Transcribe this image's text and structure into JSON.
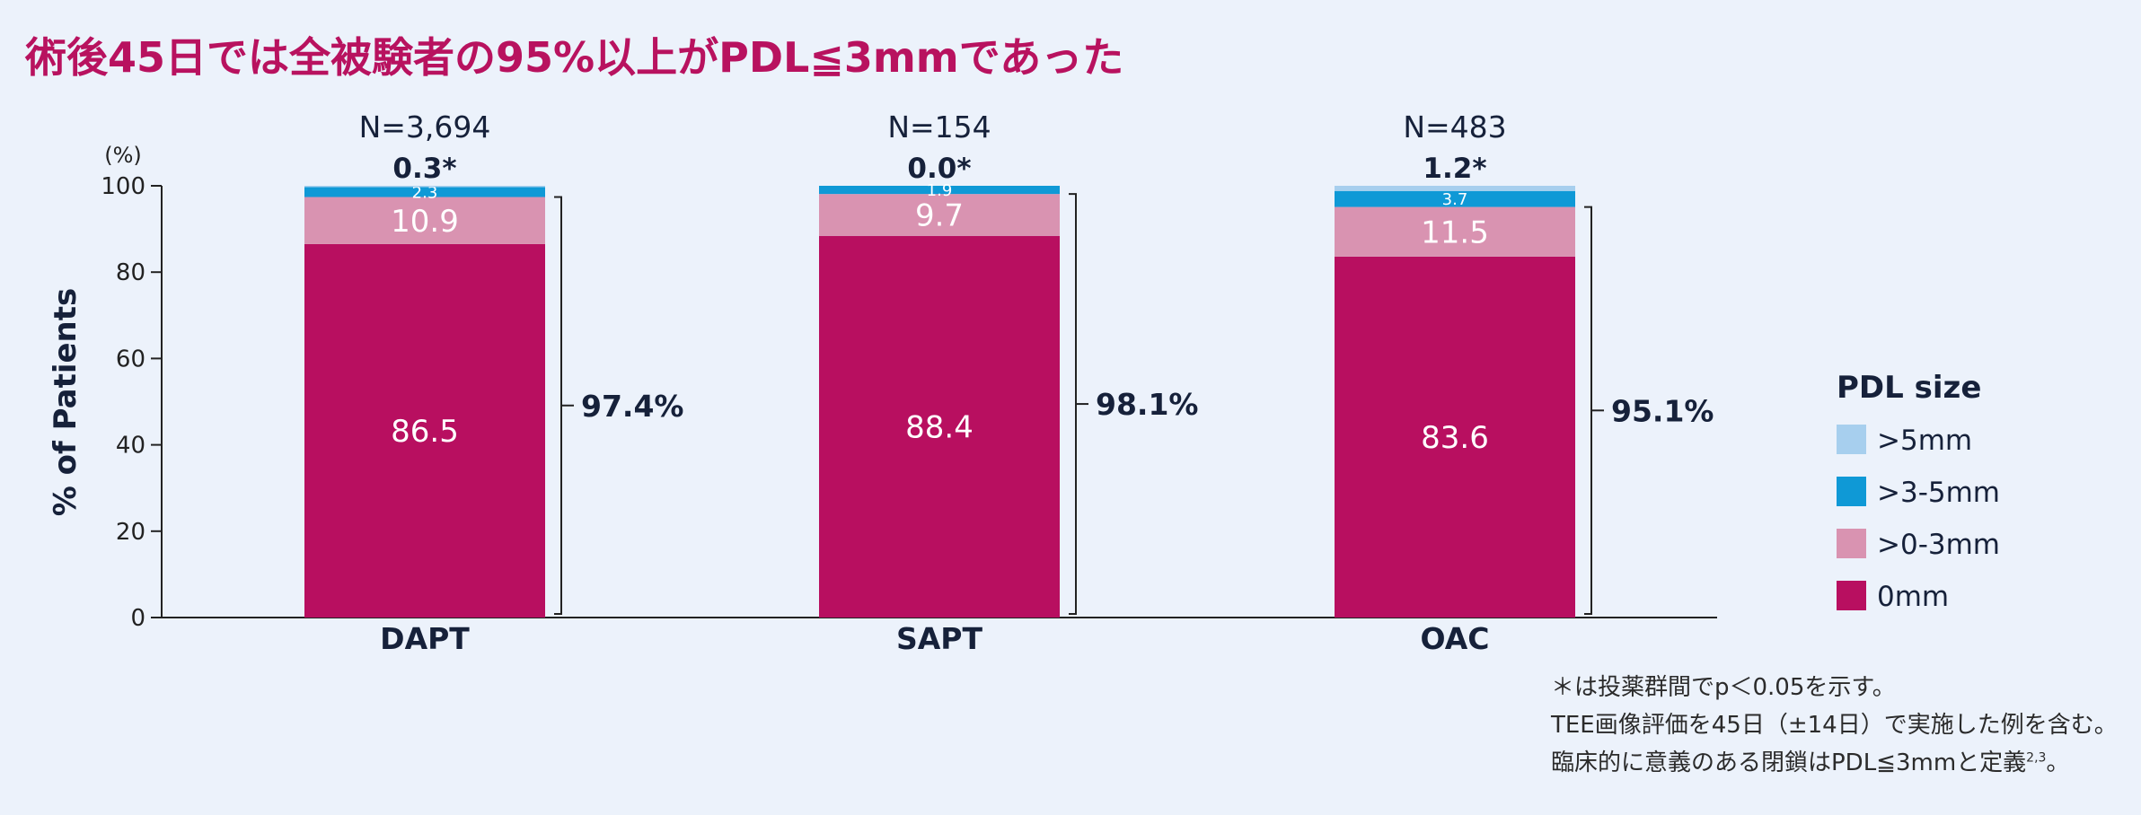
{
  "headline": "術後45日では全被験者の95%以上がPDL≦3mmであった",
  "chart_data": {
    "type": "bar",
    "stacked": true,
    "ylabel": "% of Patients",
    "yunit": "(%)",
    "ylim": [
      0,
      100
    ],
    "yticks": [
      0,
      20,
      40,
      60,
      80,
      100
    ],
    "categories": [
      "DAPT",
      "SAPT",
      "OAC"
    ],
    "n_labels": [
      "N=3,694",
      "N=154",
      "N=483"
    ],
    "top_labels": [
      "0.3*",
      "0.0*",
      "1.2*"
    ],
    "series": [
      {
        "name": "0mm",
        "color": "#b80f60",
        "values": [
          86.5,
          88.4,
          83.6
        ],
        "labels": [
          "86.5",
          "88.4",
          "83.6"
        ]
      },
      {
        "name": ">0-3mm",
        "color": "#d993b1",
        "values": [
          10.9,
          9.7,
          11.5
        ],
        "labels": [
          "10.9",
          "9.7",
          "11.5"
        ]
      },
      {
        "name": ">3-5mm",
        "color": "#0f99d6",
        "values": [
          2.3,
          1.9,
          3.7
        ],
        "labels": [
          "2.3",
          "1.9",
          "3.7"
        ]
      },
      {
        "name": ">5mm",
        "color": "#a7cfee",
        "values": [
          0.3,
          0.0,
          1.2
        ]
      }
    ],
    "bracket_labels": [
      "97.4%",
      "98.1%",
      "95.1%"
    ],
    "legend_title": "PDL size",
    "legend_items": [
      ">5mm",
      ">3-5mm",
      ">0-3mm",
      "0mm"
    ],
    "legend_colors": [
      "#a7cfee",
      "#0f99d6",
      "#d993b1",
      "#b80f60"
    ],
    "legend_placement": "right"
  },
  "footnotes": {
    "line1": "＊は投薬群間でp＜0.05を示す。",
    "line2": "TEE画像評価を45日（±14日）で実施した例を含む。",
    "line3": "臨床的に意義のある閉鎖はPDL≦3mmと定義",
    "line3_refs": "2,3",
    "line3_end": "。"
  }
}
